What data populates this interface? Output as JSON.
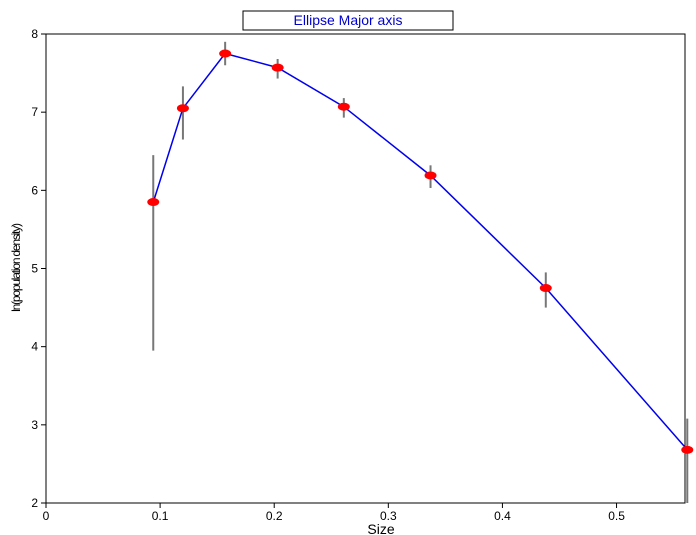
{
  "chart_data": {
    "type": "line",
    "title": "Ellipse Major axis",
    "xlabel": "Size",
    "ylabel": "ln(population density)",
    "xlim": [
      0,
      0.56
    ],
    "ylim": [
      2,
      8
    ],
    "x_ticks": [
      "0",
      "0.1",
      "0.2",
      "0.3",
      "0.4",
      "0.5"
    ],
    "y_ticks": [
      "2",
      "3",
      "4",
      "5",
      "6",
      "7",
      "8"
    ],
    "grid": false,
    "series": [
      {
        "x": [
          0.094,
          0.12,
          0.157,
          0.203,
          0.261,
          0.337,
          0.438,
          0.562
        ],
        "y": [
          5.85,
          7.05,
          7.75,
          7.57,
          7.07,
          6.19,
          4.75,
          2.68
        ],
        "err_low": [
          3.95,
          6.65,
          7.6,
          7.43,
          6.93,
          6.03,
          4.5,
          2.0
        ],
        "err_high": [
          6.45,
          7.33,
          7.9,
          7.68,
          7.18,
          6.32,
          4.95,
          3.08
        ]
      }
    ],
    "colors": {
      "line": "#0000ee",
      "marker": "#ff0000",
      "errorbar": "#777777",
      "title_text": "#0000cc"
    }
  }
}
